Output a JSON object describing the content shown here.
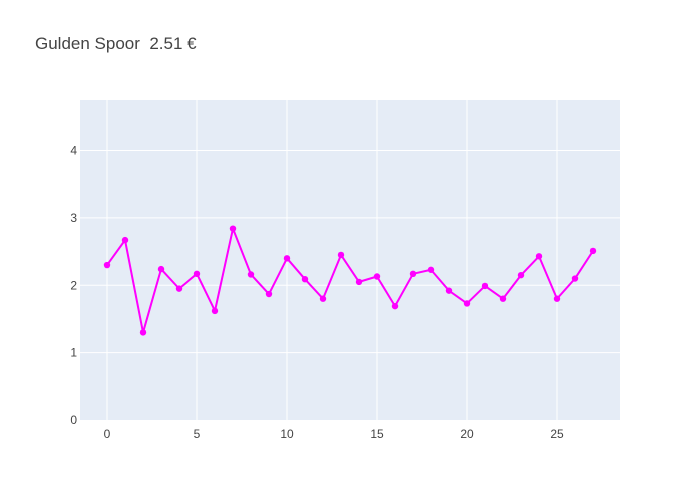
{
  "chart_data": {
    "type": "line",
    "title": "Gulden Spoor  2.51 €",
    "xlabel": "",
    "ylabel": "",
    "xlim": [
      -1.5,
      28.5
    ],
    "ylim": [
      0,
      4.75
    ],
    "x_ticks": [
      0,
      5,
      10,
      15,
      20,
      25
    ],
    "y_ticks": [
      0,
      1,
      2,
      3,
      4
    ],
    "grid": true,
    "series": [
      {
        "color": "#ff00ff",
        "mode": "lines+markers",
        "x": [
          0,
          1,
          2,
          3,
          4,
          5,
          6,
          7,
          8,
          9,
          10,
          11,
          12,
          13,
          14,
          15,
          16,
          17,
          18,
          19,
          20,
          21,
          22,
          23,
          24,
          25,
          26,
          27
        ],
        "values": [
          2.3,
          2.67,
          1.3,
          2.24,
          1.95,
          2.17,
          1.62,
          2.84,
          2.16,
          1.87,
          2.4,
          2.09,
          1.8,
          2.45,
          2.05,
          2.13,
          1.69,
          2.17,
          2.23,
          1.92,
          1.73,
          1.99,
          1.8,
          2.15,
          2.43,
          1.8,
          2.1,
          2.51
        ]
      }
    ]
  },
  "colors": {
    "plot_background": "#e5ecf6",
    "grid": "#ffffff",
    "line": "#ff00ff",
    "text": "#444444"
  }
}
